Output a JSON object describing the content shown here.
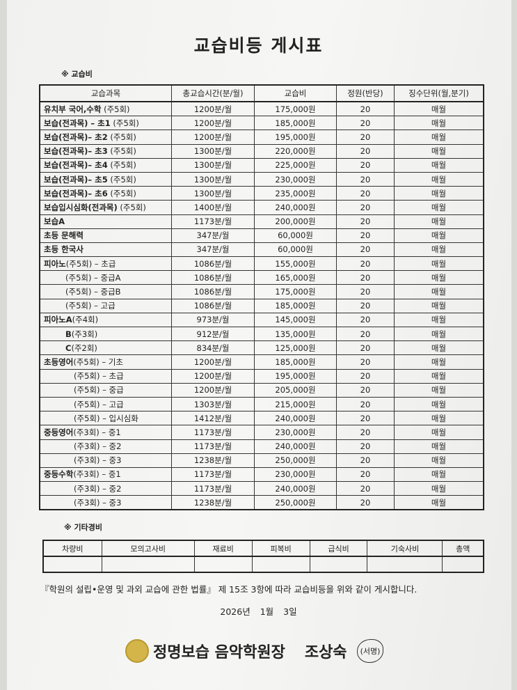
{
  "title": "교습비등 게시표",
  "section1": "※   교습비",
  "headers": [
    "교습과목",
    "총교습시간(분/월)",
    "교습비",
    "정원(반당)",
    "징수단위(월,분기)"
  ],
  "rows": [
    {
      "bold": "유치부 국어,수학",
      "rest": " (주5회)",
      "indent": 0,
      "time": "1200분/월",
      "fee": "175,000원",
      "cap": "20",
      "unit": "매월"
    },
    {
      "bold": "보습(전과목) – 초1",
      "rest": " (주5회)",
      "indent": 0,
      "time": "1200분/월",
      "fee": "185,000원",
      "cap": "20",
      "unit": "매월"
    },
    {
      "bold": "보습(전과목)– 초2",
      "rest": " (주5회)",
      "indent": 0,
      "time": "1200분/월",
      "fee": "195,000원",
      "cap": "20",
      "unit": "매월"
    },
    {
      "bold": "보습(전과목)– 초3",
      "rest": " (주5회)",
      "indent": 0,
      "time": "1300분/월",
      "fee": "220,000원",
      "cap": "20",
      "unit": "매월"
    },
    {
      "bold": "보습(전과목)– 초4",
      "rest": " (주5회)",
      "indent": 0,
      "time": "1300분/월",
      "fee": "225,000원",
      "cap": "20",
      "unit": "매월"
    },
    {
      "bold": "보습(전과목)– 초5",
      "rest": " (주5회)",
      "indent": 0,
      "time": "1300분/월",
      "fee": "230,000원",
      "cap": "20",
      "unit": "매월"
    },
    {
      "bold": "보습(전과목)– 초6",
      "rest": " (주5회)",
      "indent": 0,
      "time": "1300분/월",
      "fee": "235,000원",
      "cap": "20",
      "unit": "매월"
    },
    {
      "bold": "보습입시심화(전과목)",
      "rest": " (주5회)",
      "indent": 0,
      "time": "1400분/월",
      "fee": "240,000원",
      "cap": "20",
      "unit": "매월"
    },
    {
      "bold": "보습A",
      "rest": "",
      "indent": 0,
      "time": "1173분/월",
      "fee": "200,000원",
      "cap": "20",
      "unit": "매월"
    },
    {
      "bold": "초등 문해력",
      "rest": "",
      "indent": 0,
      "time": "347분/월",
      "fee": "60,000원",
      "cap": "20",
      "unit": "매월"
    },
    {
      "bold": "초등 한국사",
      "rest": "",
      "indent": 0,
      "time": "347분/월",
      "fee": "60,000원",
      "cap": "20",
      "unit": "매월"
    },
    {
      "bold": "피아노",
      "rest": "(주5회) – 초급",
      "indent": 0,
      "time": "1086분/월",
      "fee": "155,000원",
      "cap": "20",
      "unit": "매월"
    },
    {
      "bold": "",
      "rest": "(주5회) – 중급A",
      "indent": 1,
      "time": "1086분/월",
      "fee": "165,000원",
      "cap": "20",
      "unit": "매월"
    },
    {
      "bold": "",
      "rest": "(주5회) – 중급B",
      "indent": 1,
      "time": "1086분/월",
      "fee": "175,000원",
      "cap": "20",
      "unit": "매월"
    },
    {
      "bold": "",
      "rest": "(주5회) – 고급",
      "indent": 1,
      "time": "1086분/월",
      "fee": "185,000원",
      "cap": "20",
      "unit": "매월"
    },
    {
      "bold": "피아노A",
      "rest": "(주4회)",
      "indent": 0,
      "time": "973분/월",
      "fee": "145,000원",
      "cap": "20",
      "unit": "매월"
    },
    {
      "bold": "B",
      "rest": "(주3회)",
      "indent": 1,
      "time": "912분/월",
      "fee": "135,000원",
      "cap": "20",
      "unit": "매월"
    },
    {
      "bold": "C",
      "rest": "(주2회)",
      "indent": 1,
      "time": "834분/월",
      "fee": "125,000원",
      "cap": "20",
      "unit": "매월"
    },
    {
      "bold": "초등영어",
      "rest": "(주5회) – 기초",
      "indent": 0,
      "time": "1200분/월",
      "fee": "185,000원",
      "cap": "20",
      "unit": "매월"
    },
    {
      "bold": "",
      "rest": "(주5회) – 초급",
      "indent": 2,
      "time": "1200분/월",
      "fee": "195,000원",
      "cap": "20",
      "unit": "매월"
    },
    {
      "bold": "",
      "rest": "(주5회) – 중급",
      "indent": 2,
      "time": "1200분/월",
      "fee": "205,000원",
      "cap": "20",
      "unit": "매월"
    },
    {
      "bold": "",
      "rest": "(주5회) – 고급",
      "indent": 2,
      "time": "1303분/월",
      "fee": "215,000원",
      "cap": "20",
      "unit": "매월"
    },
    {
      "bold": "",
      "rest": "(주5회) – 입시심화",
      "indent": 2,
      "time": "1412분/월",
      "fee": "240,000원",
      "cap": "20",
      "unit": "매월"
    },
    {
      "bold": "중등영어",
      "rest": "(주3회) – 중1",
      "indent": 0,
      "time": "1173분/월",
      "fee": "230,000원",
      "cap": "20",
      "unit": "매월"
    },
    {
      "bold": "",
      "rest": "(주3회) – 중2",
      "indent": 2,
      "time": "1173분/월",
      "fee": "240,000원",
      "cap": "20",
      "unit": "매월"
    },
    {
      "bold": "",
      "rest": "(주3회) – 중3",
      "indent": 2,
      "time": "1238분/월",
      "fee": "250,000원",
      "cap": "20",
      "unit": "매월"
    },
    {
      "bold": "중등수학",
      "rest": "(주3회) – 중1",
      "indent": 0,
      "time": "1173분/월",
      "fee": "230,000원",
      "cap": "20",
      "unit": "매월"
    },
    {
      "bold": "",
      "rest": "(주3회) – 중2",
      "indent": 2,
      "time": "1173분/월",
      "fee": "240,000원",
      "cap": "20",
      "unit": "매월"
    },
    {
      "bold": "",
      "rest": "(주3회) – 중3",
      "indent": 2,
      "time": "1238분/월",
      "fee": "250,000원",
      "cap": "20",
      "unit": "매월"
    }
  ],
  "section2": "※   기타경비",
  "etc_headers": [
    "차량비",
    "모의고사비",
    "재료비",
    "피복비",
    "급식비",
    "기숙사비",
    "총액"
  ],
  "notice": "『학원의 설립•운영 및 과외 교습에 관한 법률』 제 15조 3항에 따라 교습비등을 위와 같이 게시합니다.",
  "date": "2026년 1월 3일",
  "signature": {
    "academy": "정명보습 음악학원장",
    "name": "조상숙",
    "sign_label": "(서명)",
    "seal_text": "정명"
  }
}
